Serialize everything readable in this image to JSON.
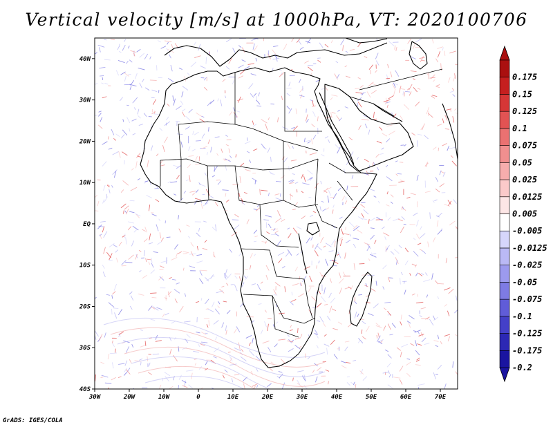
{
  "title": "Vertical velocity [m/s] at 1000hPa, VT: 2020100706",
  "credit": "GrADS: IGES/COLA",
  "map": {
    "lon_range": [
      -30,
      75
    ],
    "lat_range": [
      -40,
      45
    ],
    "lon_ticks": [
      {
        "value": -30,
        "label": "30W"
      },
      {
        "value": -20,
        "label": "20W"
      },
      {
        "value": -10,
        "label": "10W"
      },
      {
        "value": 0,
        "label": "0"
      },
      {
        "value": 10,
        "label": "10E"
      },
      {
        "value": 20,
        "label": "20E"
      },
      {
        "value": 30,
        "label": "30E"
      },
      {
        "value": 40,
        "label": "40E"
      },
      {
        "value": 50,
        "label": "50E"
      },
      {
        "value": 60,
        "label": "60E"
      },
      {
        "value": 70,
        "label": "70E"
      }
    ],
    "lat_ticks": [
      {
        "value": 40,
        "label": "40N"
      },
      {
        "value": 30,
        "label": "30N"
      },
      {
        "value": 20,
        "label": "20N"
      },
      {
        "value": 10,
        "label": "10N"
      },
      {
        "value": 0,
        "label": "EQ"
      },
      {
        "value": -10,
        "label": "10S"
      },
      {
        "value": -20,
        "label": "20S"
      },
      {
        "value": -30,
        "label": "30S"
      },
      {
        "value": -40,
        "label": "40S"
      }
    ]
  },
  "colorbar": {
    "colors": [
      "#1a14a0",
      "#2c28b4",
      "#4440c8",
      "#605cd8",
      "#7e7be4",
      "#9c9aee",
      "#bab9f5",
      "#d6d6fb",
      "#ffffff",
      "#fde6e6",
      "#fbcaca",
      "#f6adad",
      "#f08f8f",
      "#ea7171",
      "#e25353",
      "#d63636",
      "#c51f1f",
      "#aa1010"
    ],
    "labels": [
      "-0.2",
      "-0.175",
      "-0.125",
      "-0.1",
      "-0.075",
      "-0.05",
      "-0.025",
      "-0.0125",
      "-0.005",
      "0.005",
      "0.0125",
      "0.025",
      "0.05",
      "0.075",
      "0.1",
      "0.125",
      "0.15",
      "0.175"
    ]
  }
}
